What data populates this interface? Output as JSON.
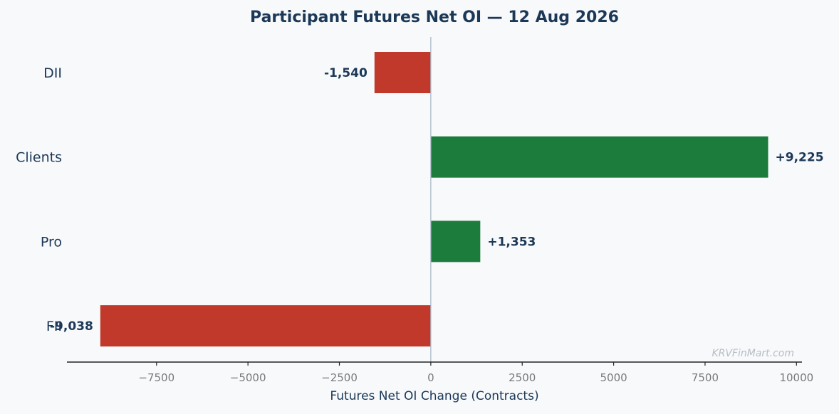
{
  "chart_data": {
    "type": "bar",
    "orientation": "horizontal",
    "title": "Participant Futures Net OI — 12 Aug 2026",
    "xlabel": "Futures Net OI Change (Contracts)",
    "ylabel": "",
    "categories": [
      "DII",
      "Clients",
      "Pro",
      "FII"
    ],
    "values": [
      -1540,
      9225,
      1353,
      -9038
    ],
    "data_labels": [
      "-1,540",
      "+9,225",
      "+1,353",
      "-9,038"
    ],
    "xlim": [
      -9950,
      10150
    ],
    "xticks": [
      -7500,
      -5000,
      -2500,
      0,
      2500,
      5000,
      7500,
      10000
    ],
    "xtick_labels": [
      "−7500",
      "−5000",
      "−2500",
      "0",
      "2500",
      "5000",
      "7500",
      "10000"
    ],
    "grid": false,
    "legend": "none",
    "colors": {
      "positive": "#1c7c3c",
      "negative": "#c0392b",
      "zero_line": "#aab8c8",
      "axis": "#222222",
      "text": "#1c3857"
    }
  },
  "watermark": "KRVFinMart.com"
}
